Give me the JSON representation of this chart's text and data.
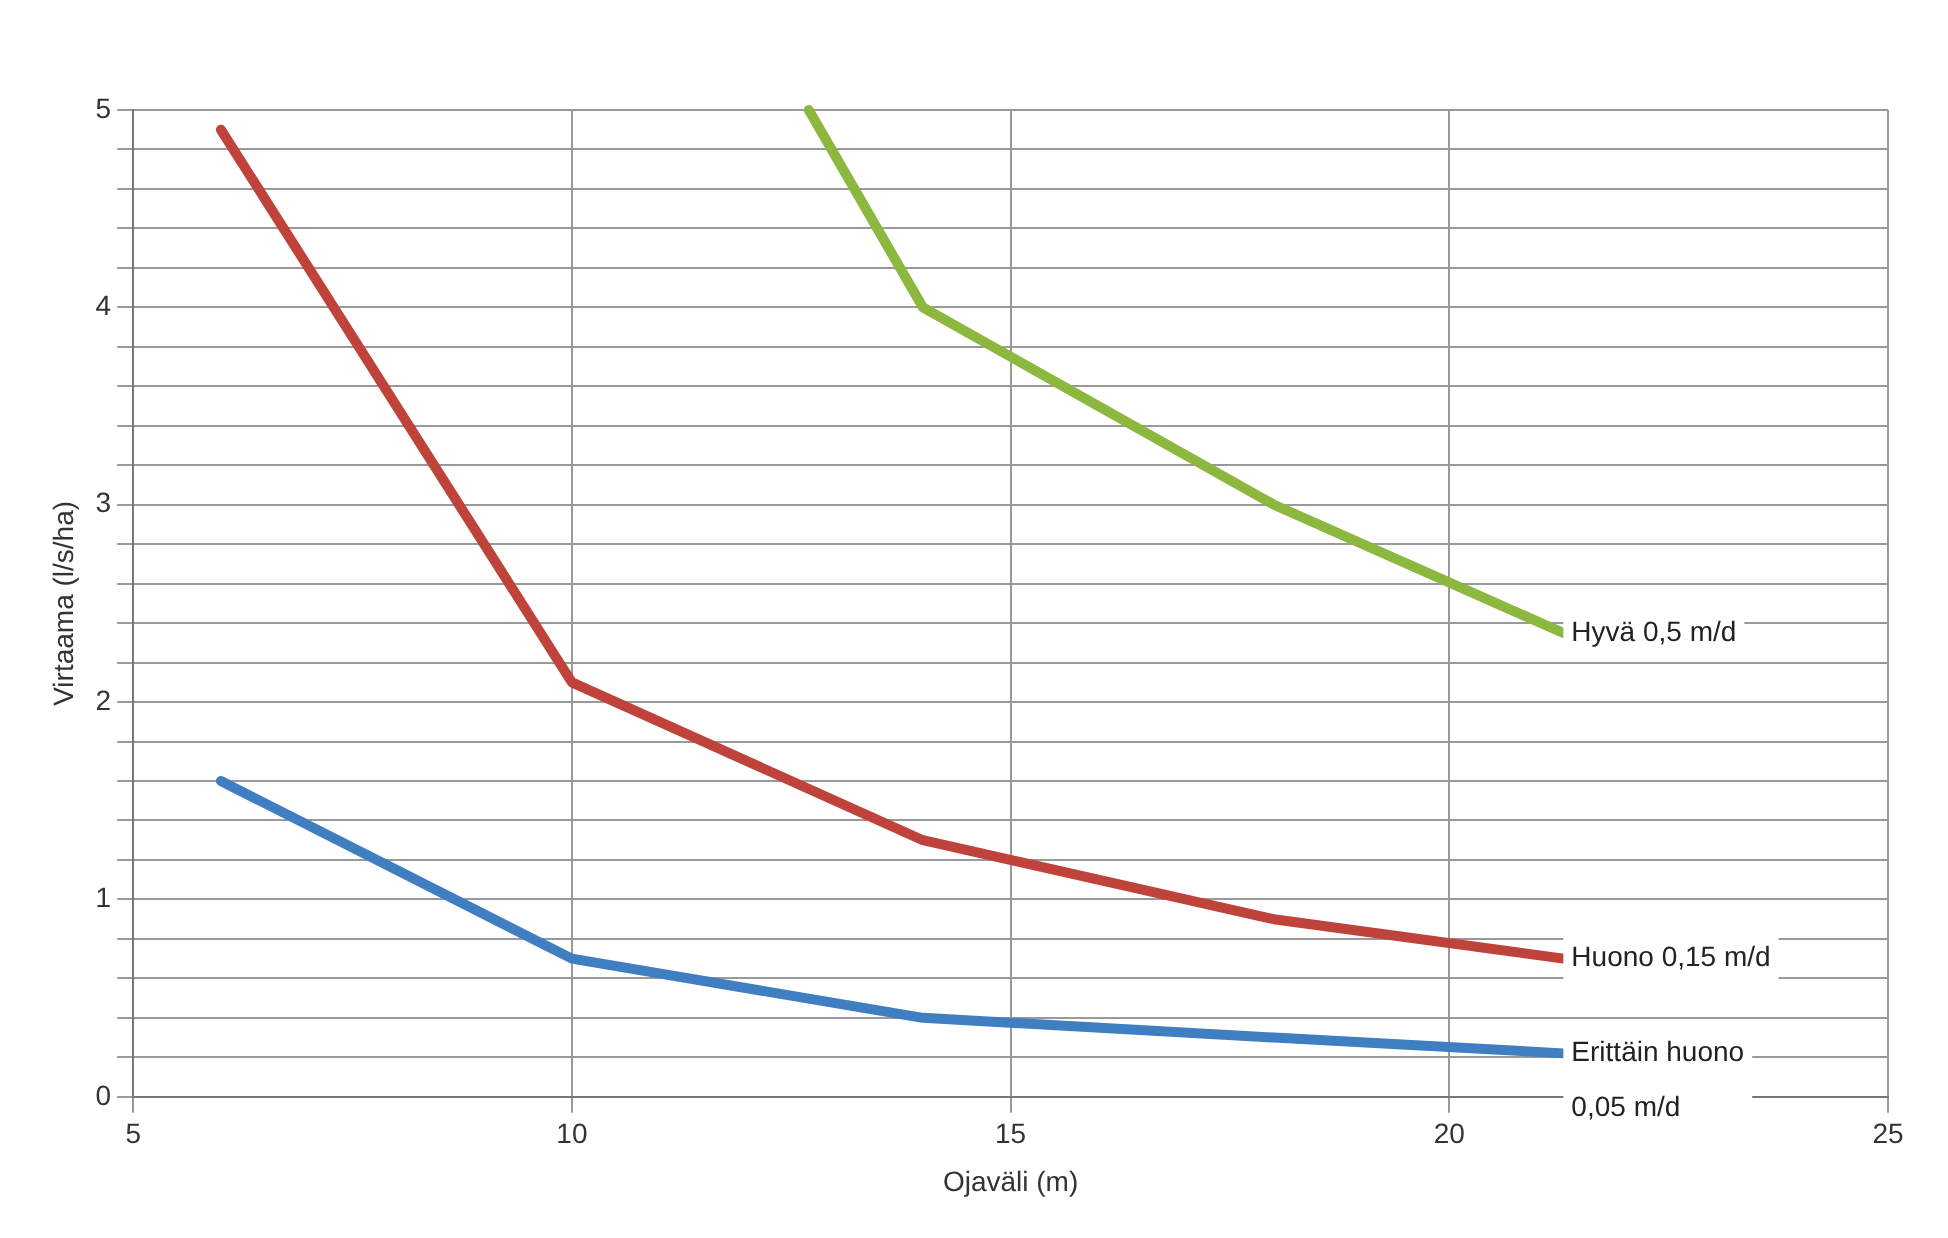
{
  "chart_data": {
    "type": "line",
    "xlabel": "Ojaväli (m)",
    "ylabel": "Virtaama (l/s/ha)",
    "xlim": [
      5,
      25
    ],
    "xticks": [
      5,
      10,
      15,
      20,
      25
    ],
    "ylim": [
      0,
      5
    ],
    "yticks": [
      0,
      {
        "value": 0.2,
        "label": null
      },
      {
        "value": 0.4,
        "label": null
      },
      {
        "value": 0.6,
        "label": null
      },
      {
        "value": 0.8,
        "label": null
      },
      1,
      {
        "value": 1.2,
        "label": null
      },
      {
        "value": 1.4,
        "label": null
      },
      {
        "value": 1.6,
        "label": null
      },
      {
        "value": 1.8,
        "label": null
      },
      2,
      {
        "value": 2.2,
        "label": null
      },
      {
        "value": 2.4,
        "label": null
      },
      {
        "value": 2.6,
        "label": null
      },
      {
        "value": 2.8,
        "label": null
      },
      3,
      {
        "value": 3.2,
        "label": null
      },
      {
        "value": 3.4,
        "label": null
      },
      {
        "value": 3.6,
        "label": null
      },
      {
        "value": 3.8,
        "label": null
      },
      4,
      {
        "value": 4.2,
        "label": null
      },
      {
        "value": 4.4,
        "label": null
      },
      {
        "value": 4.6,
        "label": null
      },
      {
        "value": 4.8,
        "label": null
      },
      5
    ],
    "grid": true,
    "legend": false,
    "marker": "none",
    "line_style": "solid",
    "series": [
      {
        "name": "Hyvä 0,5 m/d",
        "color": "#8db83f",
        "x": [
          12.7,
          14,
          18,
          21.3
        ],
        "values": [
          5,
          4.0,
          3.0,
          2.35
        ]
      },
      {
        "name": "Huono 0,15 m/d",
        "color": "#c0433b",
        "x": [
          6,
          10,
          14,
          18,
          21.3
        ],
        "values": [
          4.9,
          2.1,
          1.3,
          0.9,
          0.7
        ]
      },
      {
        "name": "Erittäin huono 0,05 m/d",
        "color": "#3f7fc1",
        "x": [
          6,
          10,
          14,
          18,
          21.3
        ],
        "values": [
          1.6,
          0.7,
          0.4,
          0.3,
          0.22
        ]
      }
    ]
  }
}
